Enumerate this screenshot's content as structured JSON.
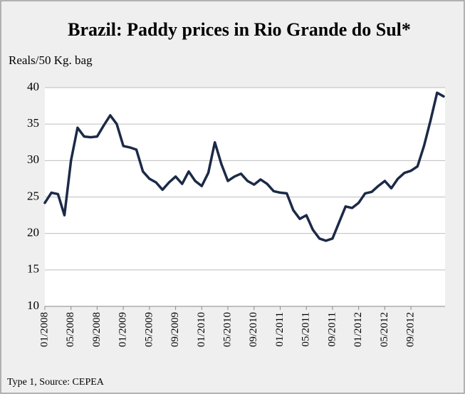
{
  "chart_data": {
    "type": "line",
    "title": "Brazil: Paddy prices in Rio Grande do Sul*",
    "subtitle": "Reals/50 Kg. bag",
    "note": "Type 1, Source: CEPEA",
    "categories": [
      "01/2008",
      null,
      null,
      null,
      "05/2008",
      null,
      null,
      null,
      "09/2008",
      null,
      null,
      null,
      "01/2009",
      null,
      null,
      null,
      "05/2009",
      null,
      null,
      null,
      "09/2009",
      null,
      null,
      null,
      "01/2010",
      null,
      null,
      null,
      "05/2010",
      null,
      null,
      null,
      "09/2010",
      null,
      null,
      null,
      "01/2011",
      null,
      null,
      null,
      "05/2011",
      null,
      null,
      null,
      "09/2011",
      null,
      null,
      null,
      "01/2012",
      null,
      null,
      null,
      "05/2012",
      null,
      null,
      null,
      "09/2012",
      null,
      null,
      null,
      null,
      null
    ],
    "values": [
      24.2,
      25.6,
      25.4,
      22.5,
      30,
      34.5,
      33.3,
      33.2,
      33.3,
      34.8,
      36.2,
      35,
      32,
      31.8,
      31.5,
      28.5,
      27.5,
      27,
      26,
      27,
      27.8,
      26.8,
      28.5,
      27.2,
      26.5,
      28.3,
      32.5,
      29.5,
      27.2,
      27.8,
      28.2,
      27.2,
      26.7,
      27.4,
      26.8,
      25.8,
      25.6,
      25.5,
      23.2,
      22,
      22.5,
      20.5,
      19.3,
      19,
      19.3,
      21.5,
      23.7,
      23.5,
      24.2,
      25.5,
      25.7,
      26.5,
      27.2,
      26.2,
      27.5,
      28.3,
      28.6,
      29.2,
      32,
      35.5,
      39.3,
      38.8
    ],
    "color": "#1c2a47",
    "ylim": [
      10,
      40
    ],
    "yticks": [
      10,
      15,
      20,
      25,
      30,
      35,
      40
    ],
    "grid": true
  }
}
